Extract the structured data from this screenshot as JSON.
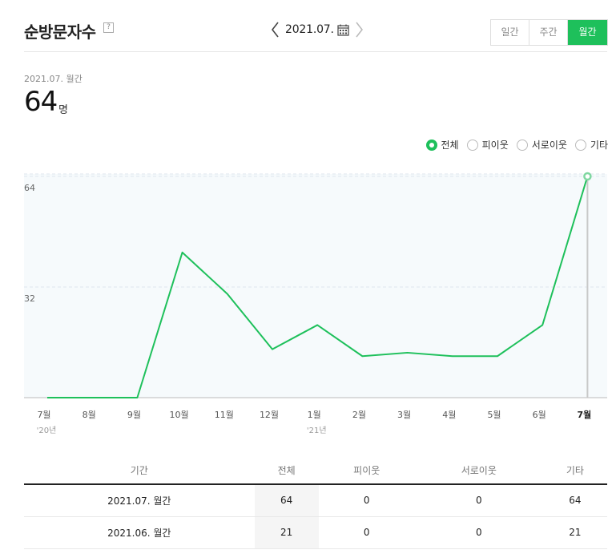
{
  "header": {
    "title": "순방문자수",
    "help": "?",
    "date": "2021.07.",
    "segments": [
      {
        "label": "일간",
        "active": false
      },
      {
        "label": "주간",
        "active": false
      },
      {
        "label": "월간",
        "active": true
      }
    ]
  },
  "summary": {
    "period": "2021.07. 월간",
    "value": "64",
    "unit": "명"
  },
  "legend": [
    {
      "label": "전체",
      "selected": true
    },
    {
      "label": "피이웃",
      "selected": false
    },
    {
      "label": "서로이웃",
      "selected": false
    },
    {
      "label": "기타",
      "selected": false
    }
  ],
  "colors": {
    "accent": "#1ec05b",
    "plot_bg": "#f6fafc"
  },
  "chart_data": {
    "type": "line",
    "categories": [
      "7월",
      "8월",
      "9월",
      "10월",
      "11월",
      "12월",
      "1월",
      "2월",
      "3월",
      "4월",
      "5월",
      "6월",
      "7월"
    ],
    "year_labels": {
      "0": "'20년",
      "6": "'21년"
    },
    "series": [
      {
        "name": "전체",
        "values": [
          0,
          0,
          0,
          42,
          30,
          14,
          21,
          12,
          13,
          12,
          12,
          21,
          64
        ]
      }
    ],
    "yticks": [
      32,
      64
    ],
    "ylim": [
      0,
      64
    ],
    "highlight_index": 12,
    "grid": true
  },
  "table": {
    "headers": [
      "기간",
      "전체",
      "피이웃",
      "서로이웃",
      "기타"
    ],
    "rows": [
      [
        "2021.07. 월간",
        "64",
        "0",
        "0",
        "64"
      ],
      [
        "2021.06. 월간",
        "21",
        "0",
        "0",
        "21"
      ]
    ]
  }
}
